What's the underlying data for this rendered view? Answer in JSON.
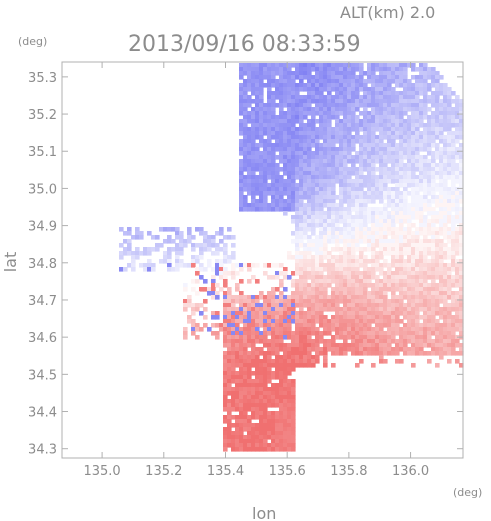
{
  "header": {
    "altitude_label": "ALT(km) 2.0",
    "timestamp": "2013/09/16 08:33:59"
  },
  "chart_data": {
    "type": "heatmap",
    "title": "2013/09/16 08:33:59",
    "xlabel": "lon",
    "ylabel": "lat",
    "x_unit": "(deg)",
    "y_unit": "(deg)",
    "xlim": [
      134.87,
      136.17
    ],
    "ylim": [
      34.275,
      35.34
    ],
    "x_ticks": [
      135.0,
      135.2,
      135.4,
      135.6,
      135.8,
      136.0
    ],
    "x_tick_labels": [
      "135.0",
      "135.2",
      "135.4",
      "135.6",
      "135.8",
      "136.0"
    ],
    "y_ticks": [
      34.3,
      34.4,
      34.5,
      34.6,
      34.7,
      34.8,
      34.9,
      35.0,
      35.1,
      35.2,
      35.3
    ],
    "y_tick_labels": [
      "34.3",
      "34.4",
      "34.5",
      "34.6",
      "34.7",
      "34.8",
      "34.9",
      "35.0",
      "35.1",
      "35.2",
      "35.3"
    ],
    "grid": false,
    "colors": {
      "negative": "#7b7bf2",
      "positive": "#f07070",
      "neutral": "#ffffff",
      "axis": "#b0b0b0",
      "text": "#8c8c8c"
    },
    "regions": [
      {
        "side": "negative",
        "lon": [
          135.62,
          136.05
        ],
        "lat": [
          34.86,
          35.34
        ],
        "intensity": 0.55
      },
      {
        "side": "negative",
        "lon": [
          135.42,
          135.7
        ],
        "lat": [
          34.92,
          35.3
        ],
        "intensity": 0.8
      },
      {
        "side": "negative",
        "lon": [
          135.08,
          135.4
        ],
        "lat": [
          34.78,
          34.9
        ],
        "intensity": 0.35
      },
      {
        "side": "positive",
        "lon": [
          135.7,
          136.15
        ],
        "lat": [
          34.52,
          34.98
        ],
        "intensity": 0.5
      },
      {
        "side": "positive",
        "lon": [
          135.36,
          135.72
        ],
        "lat": [
          34.28,
          34.72
        ],
        "intensity": 0.45
      },
      {
        "side": "positive",
        "lon": [
          135.56,
          135.7
        ],
        "lat": [
          34.31,
          34.43
        ],
        "intensity": 0.85
      }
    ]
  }
}
